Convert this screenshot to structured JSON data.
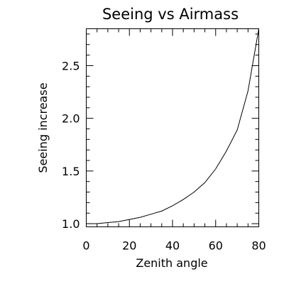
{
  "chart_data": {
    "type": "line",
    "title": "Seeing vs Airmass",
    "xlabel": "Zenith angle",
    "ylabel": "Seeing increase",
    "xlim": [
      0,
      80
    ],
    "ylim": [
      0.97,
      2.85
    ],
    "xticks": [
      0,
      20,
      40,
      60,
      80
    ],
    "xtick_labels": [
      "0",
      "20",
      "40",
      "60",
      "80"
    ],
    "yticks": [
      1.0,
      1.5,
      2.0,
      2.5
    ],
    "ytick_labels": [
      "1.0",
      "1.5",
      "2.0",
      "2.5"
    ],
    "x_minor_step": 5,
    "y_minor_step": 0.1,
    "grid": false,
    "series": [
      {
        "x": [
          0,
          5,
          10,
          15,
          20,
          25,
          30,
          35,
          40,
          45,
          50,
          55,
          60,
          65,
          70,
          75,
          80
        ],
        "y": [
          1.0,
          1.0,
          1.01,
          1.02,
          1.04,
          1.06,
          1.09,
          1.12,
          1.17,
          1.23,
          1.3,
          1.39,
          1.52,
          1.69,
          1.89,
          2.26,
          2.86
        ]
      }
    ]
  }
}
